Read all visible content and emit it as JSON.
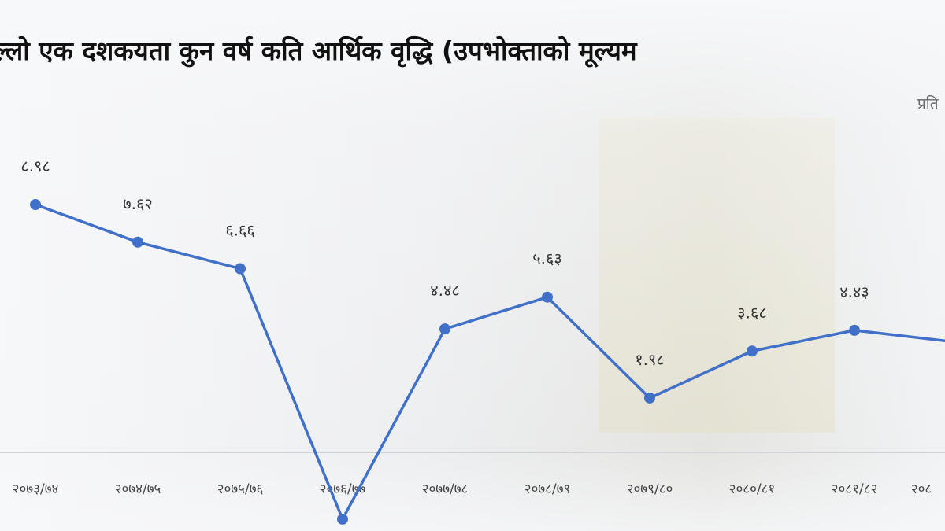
{
  "chart_data": {
    "type": "line",
    "title": "ल्लो एक दशकयता कुन वर्ष कति आर्थिक वृद्धि (उपभोक्ताको मूल्यम",
    "subtitle": "प्रति",
    "categories": [
      "२०७३/७४",
      "२०७४/७५",
      "२०७५/७६",
      "२०७६/७७",
      "२०७७/७८",
      "२०७८/७९",
      "२०७९/८०",
      "२०८०/८१",
      "२०८१/८२",
      "२०८"
    ],
    "values": [
      8.98,
      7.62,
      6.66,
      -2.4,
      4.48,
      5.63,
      1.98,
      3.68,
      4.43,
      4.0
    ],
    "value_labels": [
      "८.९८",
      "७.६२",
      "६.६६",
      null,
      "४.४८",
      "५.६३",
      "१.९८",
      "३.६८",
      "४.४३",
      null
    ],
    "color": "#4170c8",
    "ylim": [
      -2.83,
      16.38
    ]
  }
}
